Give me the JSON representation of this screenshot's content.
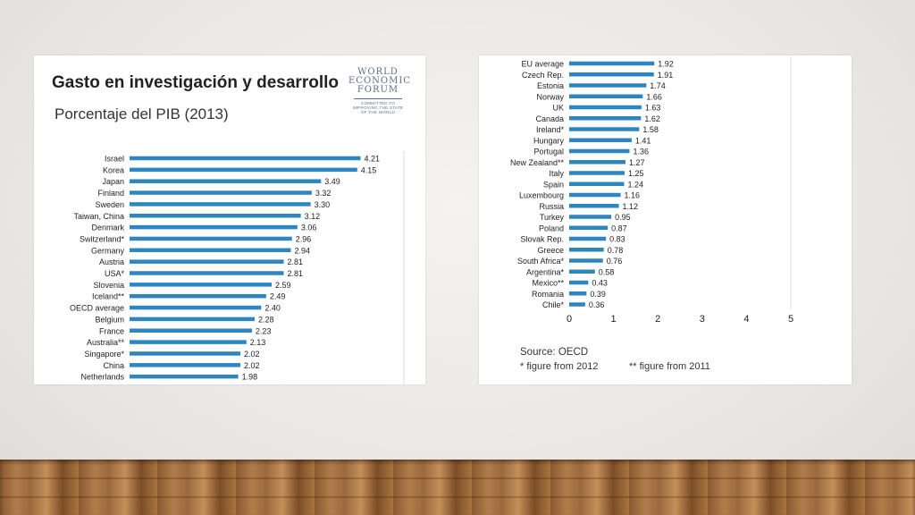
{
  "slide": {
    "title": "Gasto en investigación y desarrollo",
    "subtitle": "Porcentaje del PIB (2013)",
    "logo_lines": [
      "WORLD",
      "ECONOMIC",
      "FORUM"
    ],
    "logo_tagline": [
      "COMMITTED TO",
      "IMPROVING THE STATE",
      "OF THE WORLD"
    ],
    "source": "Source: OECD",
    "footnote_1": "* figure from 2012",
    "footnote_2": "** figure from 2011",
    "bar_color": "#2e86c1",
    "floor_color": "#a8743f"
  },
  "chart_data": [
    {
      "type": "bar",
      "orientation": "horizontal",
      "categories": [
        "Israel",
        "Korea",
        "Japan",
        "Finland",
        "Sweden",
        "Taiwan, China",
        "Denmark",
        "Switzerland*",
        "Germany",
        "Austria",
        "USA*",
        "Slovenia",
        "Iceland**",
        "OECD average",
        "Belgium",
        "France",
        "Australia**",
        "Singapore*",
        "China",
        "Netherlands"
      ],
      "values": [
        4.21,
        4.15,
        3.49,
        3.32,
        3.3,
        3.12,
        3.06,
        2.96,
        2.94,
        2.81,
        2.81,
        2.59,
        2.49,
        2.4,
        2.28,
        2.23,
        2.13,
        2.02,
        2.02,
        1.98
      ],
      "value_labels": [
        "4.21",
        "4.15",
        "3.49",
        "3.32",
        "3.30",
        "3.12",
        "3.06",
        "2.96",
        "2.94",
        "2.81",
        "2.81",
        "2.59",
        "2.49",
        "2.40",
        "2.28",
        "2.23",
        "2.13",
        "2.02",
        "2.02",
        "1.98"
      ],
      "xlim": [
        0,
        5
      ]
    },
    {
      "type": "bar",
      "orientation": "horizontal",
      "categories": [
        "EU average",
        "Czech Rep.",
        "Estonia",
        "Norway",
        "UK",
        "Canada",
        "Ireland*",
        "Hungary",
        "Portugal",
        "New Zealand**",
        "Italy",
        "Spain",
        "Luxembourg",
        "Russia",
        "Turkey",
        "Poland",
        "Slovak Rep.",
        "Greece",
        "South Africa*",
        "Argentina*",
        "Mexico**",
        "Romania",
        "Chile*"
      ],
      "values": [
        1.92,
        1.91,
        1.74,
        1.66,
        1.63,
        1.62,
        1.58,
        1.41,
        1.36,
        1.27,
        1.25,
        1.24,
        1.16,
        1.12,
        0.95,
        0.87,
        0.83,
        0.78,
        0.76,
        0.58,
        0.43,
        0.39,
        0.36
      ],
      "value_labels": [
        "1.92",
        "1.91",
        "1.74",
        "1.66",
        "1.63",
        "1.62",
        "1.58",
        "1.41",
        "1.36",
        "1.27",
        "1.25",
        "1.24",
        "1.16",
        "1.12",
        "0.95",
        "0.87",
        "0.83",
        "0.78",
        "0.76",
        "0.58",
        "0.43",
        "0.39",
        "0.36"
      ],
      "xlim": [
        0,
        5
      ],
      "xticks": [
        "0",
        "1",
        "2",
        "3",
        "4",
        "5"
      ]
    }
  ]
}
